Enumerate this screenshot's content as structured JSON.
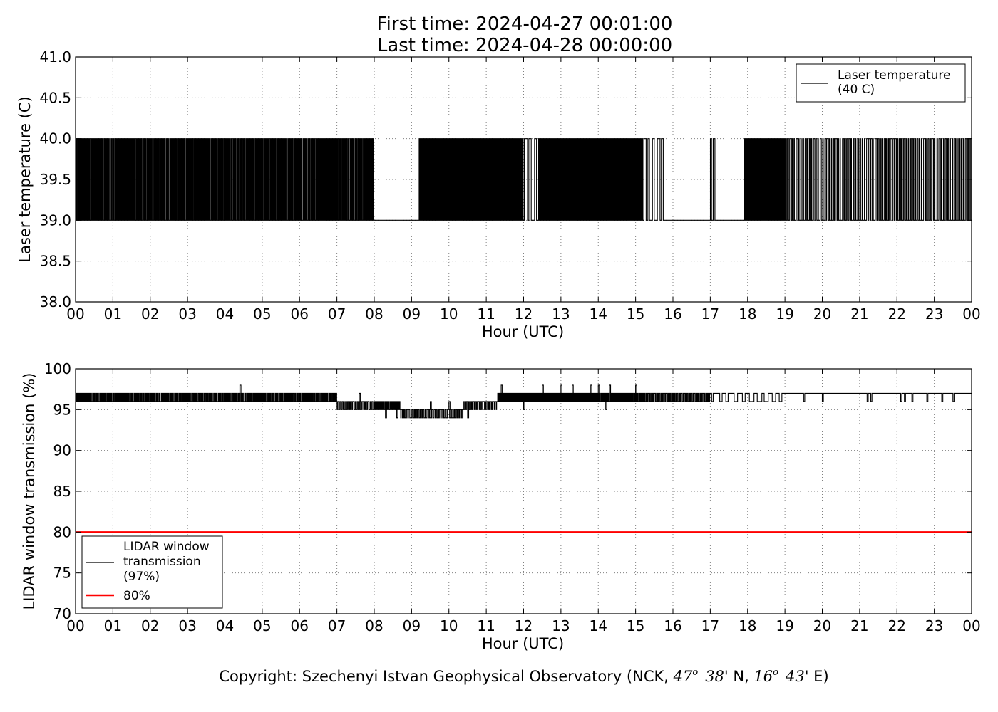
{
  "title_lines": [
    "First time: 2024-04-27 00:01:00",
    "Last time: 2024-04-28 00:00:00"
  ],
  "footer": {
    "prefix": "Copyright: Szechenyi Istvan Geophysical Observatory (NCK, ",
    "lat_deg": "47",
    "lat_min": "38",
    "lat_tail": "' N, ",
    "lon_deg": "16",
    "lon_min": "43",
    "lon_tail": "' E)",
    "deg_symbol": "o"
  },
  "colors": {
    "series": "#000000",
    "threshold": "#ff0000",
    "grid": "#808080"
  },
  "chart_data": [
    {
      "type": "line",
      "xlabel": "Hour (UTC)",
      "ylabel": "Laser temperature (C)",
      "xlim": [
        0,
        24
      ],
      "ylim": [
        38.0,
        41.0
      ],
      "x_ticks": [
        "00",
        "01",
        "02",
        "03",
        "04",
        "05",
        "06",
        "07",
        "08",
        "09",
        "10",
        "11",
        "12",
        "13",
        "14",
        "15",
        "16",
        "17",
        "18",
        "19",
        "20",
        "21",
        "22",
        "23",
        "00"
      ],
      "y_ticks": [
        "38.0",
        "38.5",
        "39.0",
        "39.5",
        "40.0",
        "40.5",
        "41.0"
      ],
      "y_tick_values": [
        38.0,
        38.5,
        39.0,
        39.5,
        40.0,
        40.5,
        41.0
      ],
      "grid": true,
      "legend_position": "upper right",
      "legend_entries": [
        "Laser temperature\n(40 C)"
      ],
      "series": [
        {
          "name": "Laser temperature\n(40 C)",
          "style": "toggle",
          "base": 39.0,
          "alt": 40.0,
          "segments": [
            {
              "x0": 0.0,
              "x1": 8.0,
              "pulses": 260
            },
            {
              "x0": 8.0,
              "x1": 9.2,
              "pulses": 0
            },
            {
              "x0": 9.2,
              "x1": 12.0,
              "pulses": 150
            },
            {
              "x0": 12.0,
              "x1": 12.4,
              "pulses": 3
            },
            {
              "x0": 12.4,
              "x1": 15.2,
              "pulses": 140
            },
            {
              "x0": 15.2,
              "x1": 15.8,
              "pulses": 5
            },
            {
              "x0": 15.8,
              "x1": 17.0,
              "pulses": 0
            },
            {
              "x0": 17.0,
              "x1": 17.15,
              "pulses": 2
            },
            {
              "x0": 17.15,
              "x1": 17.9,
              "pulses": 0
            },
            {
              "x0": 17.9,
              "x1": 19.0,
              "pulses": 45
            },
            {
              "x0": 19.0,
              "x1": 24.0,
              "pulses": 85
            }
          ]
        }
      ]
    },
    {
      "type": "line",
      "xlabel": "Hour (UTC)",
      "ylabel": "LIDAR window transmission (%)",
      "xlim": [
        0,
        24
      ],
      "ylim": [
        70,
        100
      ],
      "x_ticks": [
        "00",
        "01",
        "02",
        "03",
        "04",
        "05",
        "06",
        "07",
        "08",
        "09",
        "10",
        "11",
        "12",
        "13",
        "14",
        "15",
        "16",
        "17",
        "18",
        "19",
        "20",
        "21",
        "22",
        "23",
        "00"
      ],
      "y_ticks": [
        "70",
        "75",
        "80",
        "85",
        "90",
        "95",
        "100"
      ],
      "y_tick_values": [
        70,
        75,
        80,
        85,
        90,
        95,
        100
      ],
      "grid": true,
      "legend_position": "lower left",
      "legend_entries": [
        "LIDAR window\ntransmission\n(97%)",
        "80%"
      ],
      "series": [
        {
          "name": "LIDAR window\ntransmission\n(97%)",
          "style": "step",
          "segments": [
            {
              "x0": 0.0,
              "x1": 7.0,
              "base": 96,
              "alt": 97,
              "pulses": 220,
              "spikes": [
                [
                  4.4,
                  98
                ]
              ]
            },
            {
              "x0": 7.0,
              "x1": 8.0,
              "base": 96,
              "alt": 95,
              "pulses": 20,
              "spikes": [
                [
                  7.6,
                  97
                ]
              ]
            },
            {
              "x0": 8.0,
              "x1": 8.7,
              "base": 95,
              "alt": 96,
              "pulses": 25,
              "spikes": [
                [
                  8.3,
                  94
                ],
                [
                  8.6,
                  94
                ]
              ]
            },
            {
              "x0": 8.7,
              "x1": 10.4,
              "base": 95,
              "alt": 94,
              "pulses": 35,
              "spikes": [
                [
                  9.5,
                  96
                ],
                [
                  10.0,
                  96
                ]
              ]
            },
            {
              "x0": 10.4,
              "x1": 11.3,
              "base": 96,
              "alt": 95,
              "pulses": 20,
              "spikes": [
                [
                  10.5,
                  94
                ]
              ]
            },
            {
              "x0": 11.3,
              "x1": 15.3,
              "base": 96,
              "alt": 97,
              "pulses": 160,
              "spikes": [
                [
                  11.4,
                  98
                ],
                [
                  12.0,
                  95
                ],
                [
                  12.5,
                  98
                ],
                [
                  13.0,
                  98
                ],
                [
                  13.3,
                  98
                ],
                [
                  13.8,
                  98
                ],
                [
                  14.0,
                  98
                ],
                [
                  14.2,
                  95
                ],
                [
                  14.3,
                  98
                ],
                [
                  15.0,
                  98
                ]
              ]
            },
            {
              "x0": 15.3,
              "x1": 17.0,
              "base": 97,
              "alt": 96,
              "pulses": 45,
              "spikes": []
            },
            {
              "x0": 17.0,
              "x1": 19.0,
              "base": 97,
              "alt": 96,
              "pulses": 10,
              "spikes": []
            },
            {
              "x0": 19.0,
              "x1": 24.0,
              "base": 97,
              "alt": 96,
              "pulses": 0,
              "spikes": [
                [
                  19.5,
                  96
                ],
                [
                  20.0,
                  96
                ],
                [
                  21.2,
                  96
                ],
                [
                  21.3,
                  96
                ],
                [
                  22.1,
                  96
                ],
                [
                  22.2,
                  96
                ],
                [
                  22.4,
                  96
                ],
                [
                  22.8,
                  96
                ],
                [
                  23.2,
                  96
                ],
                [
                  23.5,
                  96
                ]
              ]
            }
          ]
        },
        {
          "name": "80%",
          "style": "constant",
          "value": 80
        }
      ]
    }
  ]
}
